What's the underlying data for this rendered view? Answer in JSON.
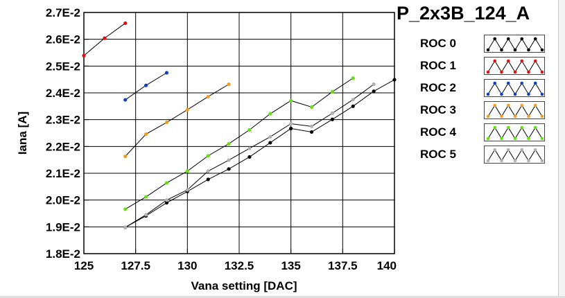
{
  "chart_data": {
    "type": "line",
    "title": "P_2x3B_124_A",
    "xlabel": "Vana setting [DAC]",
    "ylabel": "Iana [A]",
    "xlim": [
      125,
      140
    ],
    "ylim": [
      0.018,
      0.027
    ],
    "x_ticks": [
      "125",
      "127.5",
      "130",
      "132.5",
      "135",
      "137.5",
      "140"
    ],
    "x_tick_values": [
      125,
      127.5,
      130,
      132.5,
      135,
      137.5,
      140
    ],
    "y_ticks": [
      "1.8E-2",
      "1.9E-2",
      "2.0E-2",
      "2.1E-2",
      "2.2E-2",
      "2.3E-2",
      "2.4E-2",
      "2.5E-2",
      "2.6E-2",
      "2.7E-2"
    ],
    "y_tick_values": [
      0.018,
      0.019,
      0.02,
      0.021,
      0.022,
      0.023,
      0.024,
      0.025,
      0.026,
      0.027
    ],
    "grid": true,
    "legend_position": "right",
    "series": [
      {
        "name": "ROC 0",
        "color": "#000000",
        "x": [
          127,
          128,
          129,
          130,
          131,
          132,
          133,
          134,
          135,
          136,
          137,
          138,
          139,
          140
        ],
        "y": [
          0.01898,
          0.01941,
          0.0199,
          0.02032,
          0.02077,
          0.02116,
          0.02161,
          0.02214,
          0.02267,
          0.02254,
          0.02301,
          0.0235,
          0.02406,
          0.02449
        ]
      },
      {
        "name": "ROC 1",
        "color": "#e01010",
        "x": [
          125,
          126,
          127
        ],
        "y": [
          0.02539,
          0.02604,
          0.0266
        ]
      },
      {
        "name": "ROC 2",
        "color": "#1040c0",
        "x": [
          127,
          128,
          129
        ],
        "y": [
          0.02374,
          0.02428,
          0.02475
        ]
      },
      {
        "name": "ROC 3",
        "color": "#f0a020",
        "x": [
          127,
          128,
          129,
          130,
          131,
          132
        ],
        "y": [
          0.02163,
          0.02246,
          0.0229,
          0.02337,
          0.02386,
          0.02432
        ]
      },
      {
        "name": "ROC 4",
        "color": "#66e010",
        "x": [
          127,
          128,
          129,
          130,
          131,
          132,
          133,
          134,
          135,
          136,
          137,
          138
        ],
        "y": [
          0.01966,
          0.02012,
          0.02064,
          0.02108,
          0.02165,
          0.0221,
          0.02262,
          0.02322,
          0.02371,
          0.02347,
          0.02404,
          0.02455
        ]
      },
      {
        "name": "ROC 5",
        "color": "#b0b0b0",
        "x": [
          127,
          128,
          129,
          130,
          131,
          132,
          133,
          134,
          135,
          136,
          137,
          138,
          139
        ],
        "y": [
          0.01898,
          0.01945,
          0.02,
          0.02038,
          0.02108,
          0.02149,
          0.02193,
          0.02236,
          0.02285,
          0.02275,
          0.02324,
          0.02375,
          0.02432
        ]
      }
    ]
  }
}
